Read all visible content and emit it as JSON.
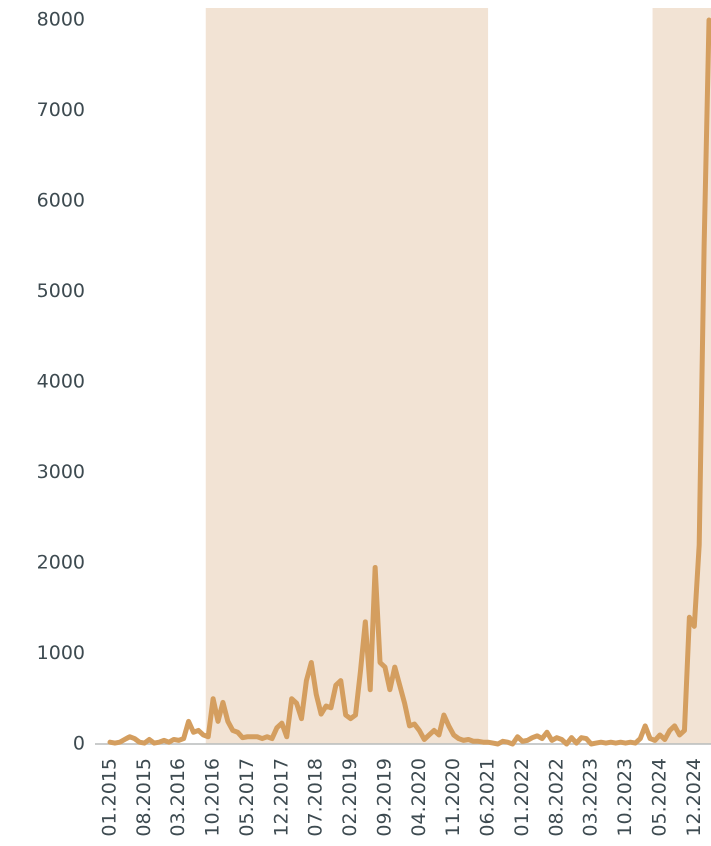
{
  "chart_data": {
    "type": "line",
    "categories": [
      "01.2015",
      null,
      null,
      null,
      null,
      null,
      null,
      "08.2015",
      null,
      null,
      null,
      null,
      null,
      null,
      "03.2016",
      null,
      null,
      null,
      null,
      null,
      null,
      "10.2016",
      null,
      null,
      null,
      null,
      null,
      null,
      "05.2017",
      null,
      null,
      null,
      null,
      null,
      null,
      "12.2017",
      null,
      null,
      null,
      null,
      null,
      null,
      "07.2018",
      null,
      null,
      null,
      null,
      null,
      null,
      "02.2019",
      null,
      null,
      null,
      null,
      null,
      null,
      "09.2019",
      null,
      null,
      null,
      null,
      null,
      null,
      "04.2020",
      null,
      null,
      null,
      null,
      null,
      null,
      "11.2020",
      null,
      null,
      null,
      null,
      null,
      null,
      "06.2021",
      null,
      null,
      null,
      null,
      null,
      null,
      "01.2022",
      null,
      null,
      null,
      null,
      null,
      null,
      "08.2022",
      null,
      null,
      null,
      null,
      null,
      null,
      "03.2023",
      null,
      null,
      null,
      null,
      null,
      null,
      "10.2023",
      null,
      null,
      null,
      null,
      null,
      null,
      "05.2024",
      null,
      null,
      null,
      null,
      null,
      null,
      "12.2024",
      null,
      null,
      null
    ],
    "values": [
      20,
      10,
      20,
      50,
      80,
      60,
      20,
      10,
      50,
      10,
      20,
      40,
      20,
      50,
      40,
      60,
      250,
      130,
      150,
      100,
      80,
      500,
      250,
      460,
      250,
      150,
      130,
      70,
      80,
      80,
      80,
      60,
      80,
      60,
      180,
      230,
      80,
      500,
      450,
      280,
      700,
      900,
      550,
      330,
      420,
      400,
      650,
      700,
      320,
      280,
      320,
      800,
      1350,
      600,
      1950,
      900,
      850,
      600,
      850,
      650,
      450,
      200,
      220,
      150,
      50,
      100,
      150,
      100,
      320,
      200,
      100,
      60,
      40,
      50,
      30,
      30,
      20,
      20,
      10,
      0,
      30,
      20,
      0,
      80,
      30,
      40,
      70,
      90,
      60,
      130,
      40,
      70,
      50,
      0,
      70,
      10,
      70,
      60,
      0,
      10,
      20,
      10,
      20,
      10,
      20,
      10,
      20,
      10,
      60,
      200,
      60,
      40,
      100,
      50,
      150,
      200,
      100,
      150,
      1400,
      1300,
      2200,
      5500,
      8000
    ],
    "color": "#d49e5f",
    "shaded_ranges": [
      [
        19.5,
        77
      ],
      [
        110.5,
        122.5
      ]
    ],
    "shade_color": "#f2e3d4",
    "ylim": [
      0,
      8000
    ],
    "yticks": [
      0,
      1000,
      2000,
      3000,
      4000,
      5000,
      6000,
      7000,
      8000
    ],
    "grid": false
  }
}
